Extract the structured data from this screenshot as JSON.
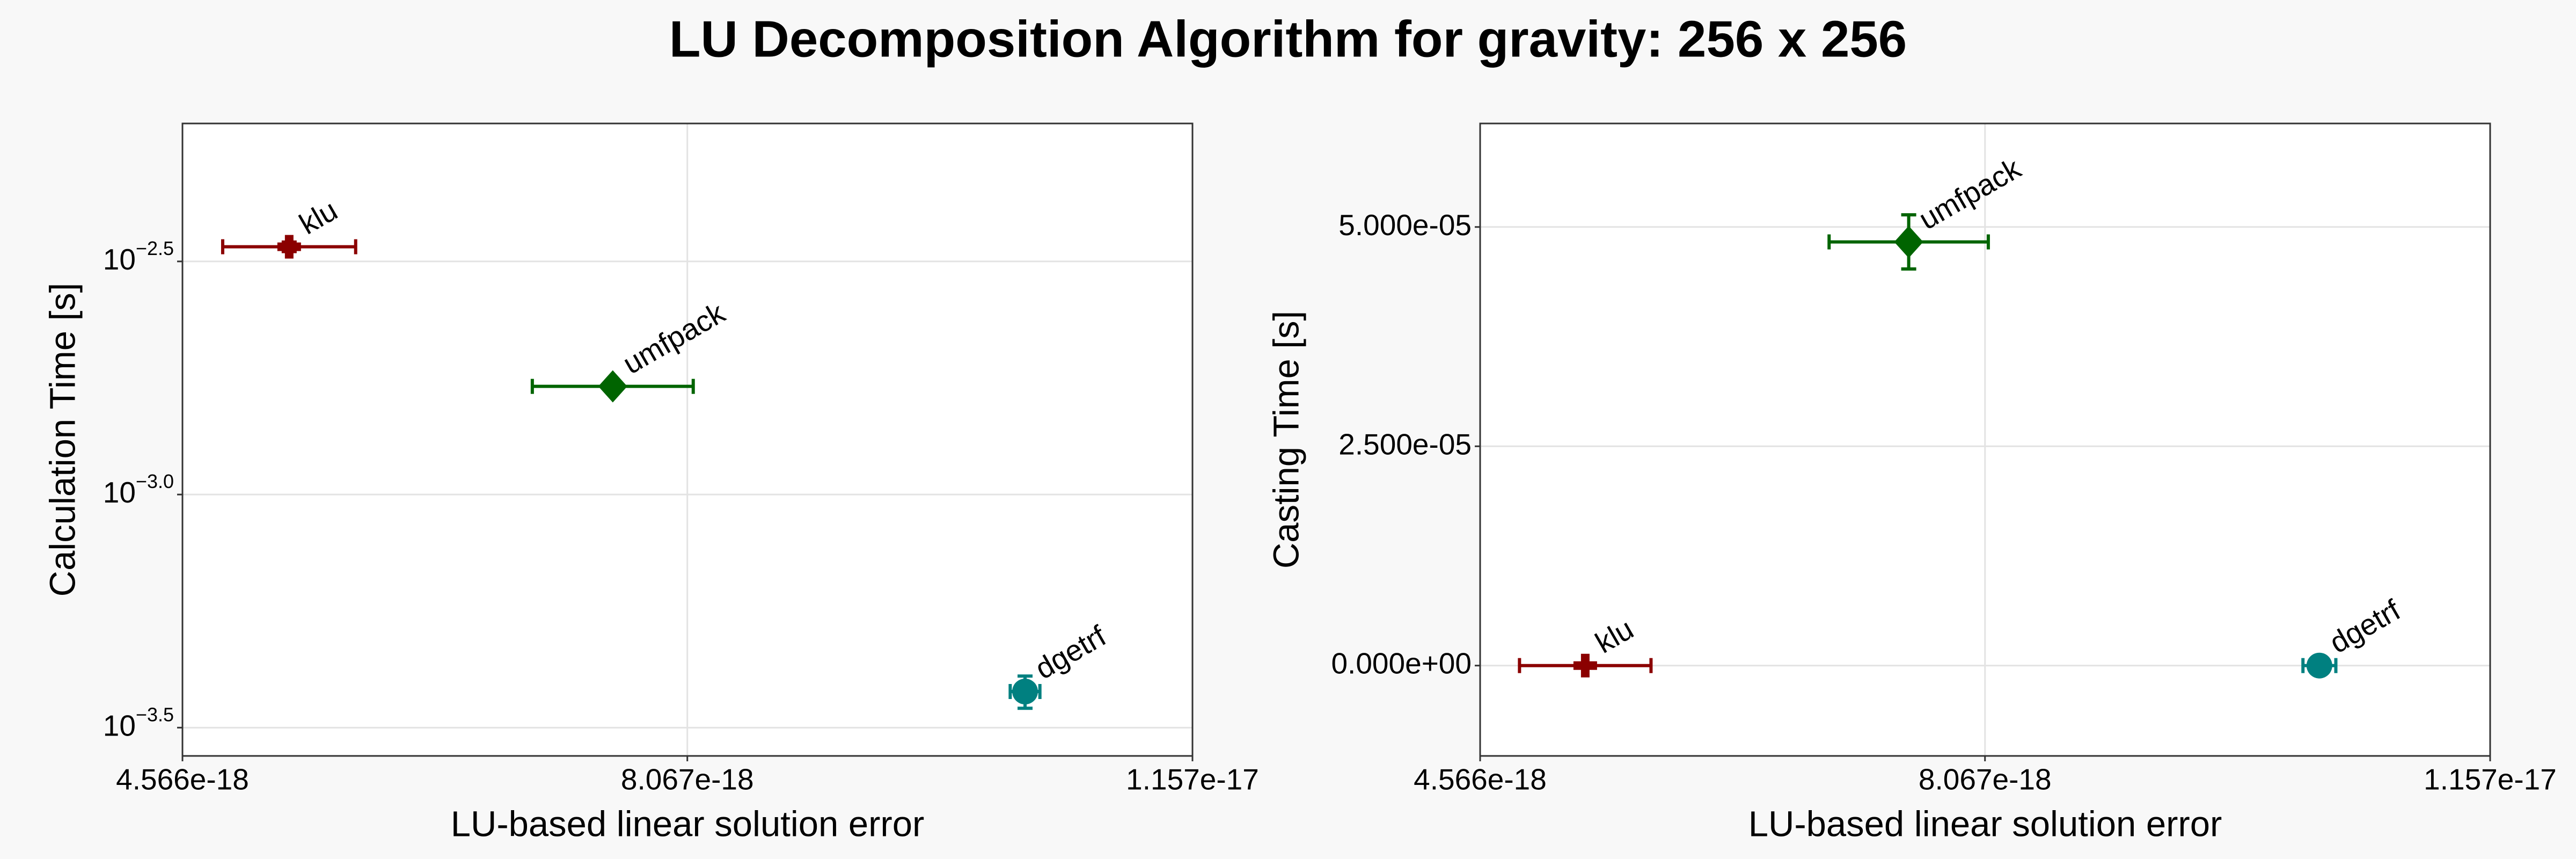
{
  "title": "LU Decomposition Algorithm for gravity: 256 x 256",
  "chart_data": [
    {
      "type": "scatter",
      "x_label": "LU-based linear solution error",
      "y_label": "Calculation Time [s]",
      "log_y": true,
      "grid": true,
      "xlim": [
        4.566e-18,
        1.157e-17
      ],
      "xticks": [
        {
          "value": 4.566e-18,
          "label": "4.566e-18"
        },
        {
          "value": 8.067e-18,
          "label": "8.067e-18"
        },
        {
          "value": 1.157e-17,
          "label": "1.157e-17"
        }
      ],
      "ylim": [
        0.000275,
        0.00625
      ],
      "yticks": [
        {
          "value": 0.0031623,
          "label": "10",
          "exponent": "−2.5"
        },
        {
          "value": 0.001,
          "label": "10",
          "exponent": "−3.0"
        },
        {
          "value": 0.00031623,
          "label": "10",
          "exponent": "−3.5"
        }
      ],
      "series": [
        {
          "name": "klu",
          "color": "#8b0000",
          "marker": "cross",
          "x": [
            5.306e-18
          ],
          "xerr": [
            4.61e-19
          ],
          "y": [
            0.0034
          ],
          "yerr": [
            8e-05
          ]
        },
        {
          "name": "umfpack",
          "color": "#006400",
          "marker": "diamond",
          "x": [
            7.55e-18
          ],
          "xerr": [
            5.58e-19
          ],
          "y": [
            0.001706
          ],
          "yerr": [
            1e-05
          ]
        },
        {
          "name": "dgetrf",
          "color": "#008080",
          "marker": "circle",
          "x": [
            1.0409e-17
          ],
          "xerr": [
            1.03e-19
          ],
          "y": [
            0.000378
          ],
          "yerr": [
            3e-05
          ]
        }
      ]
    },
    {
      "type": "scatter",
      "x_label": "LU-based linear solution error",
      "y_label": "Casting Time [s]",
      "log_y": false,
      "grid": true,
      "xlim": [
        4.566e-18,
        1.157e-17
      ],
      "xticks": [
        {
          "value": 4.566e-18,
          "label": "4.566e-18"
        },
        {
          "value": 8.067e-18,
          "label": "8.067e-18"
        },
        {
          "value": 1.157e-17,
          "label": "1.157e-17"
        }
      ],
      "ylim": [
        -1.03e-05,
        6.18e-05
      ],
      "yticks": [
        {
          "value": 0,
          "label": "0.000e+00"
        },
        {
          "value": 2.5e-05,
          "label": "2.500e-05"
        },
        {
          "value": 5e-05,
          "label": "5.000e-05"
        }
      ],
      "series": [
        {
          "name": "klu",
          "color": "#8b0000",
          "marker": "cross",
          "x": [
            5.295e-18
          ],
          "xerr": [
            4.56e-19
          ],
          "y": [
            0
          ],
          "yerr": [
            0
          ]
        },
        {
          "name": "umfpack",
          "color": "#006400",
          "marker": "diamond",
          "x": [
            7.538e-18
          ],
          "xerr": [
            5.52e-19
          ],
          "y": [
            4.83e-05
          ],
          "yerr": [
            3.09e-06
          ]
        },
        {
          "name": "dgetrf",
          "color": "#008080",
          "marker": "circle",
          "x": [
            1.0386e-17
          ],
          "xerr": [
            1.14e-19
          ],
          "y": [
            0
          ],
          "yerr": [
            0
          ]
        }
      ]
    }
  ]
}
